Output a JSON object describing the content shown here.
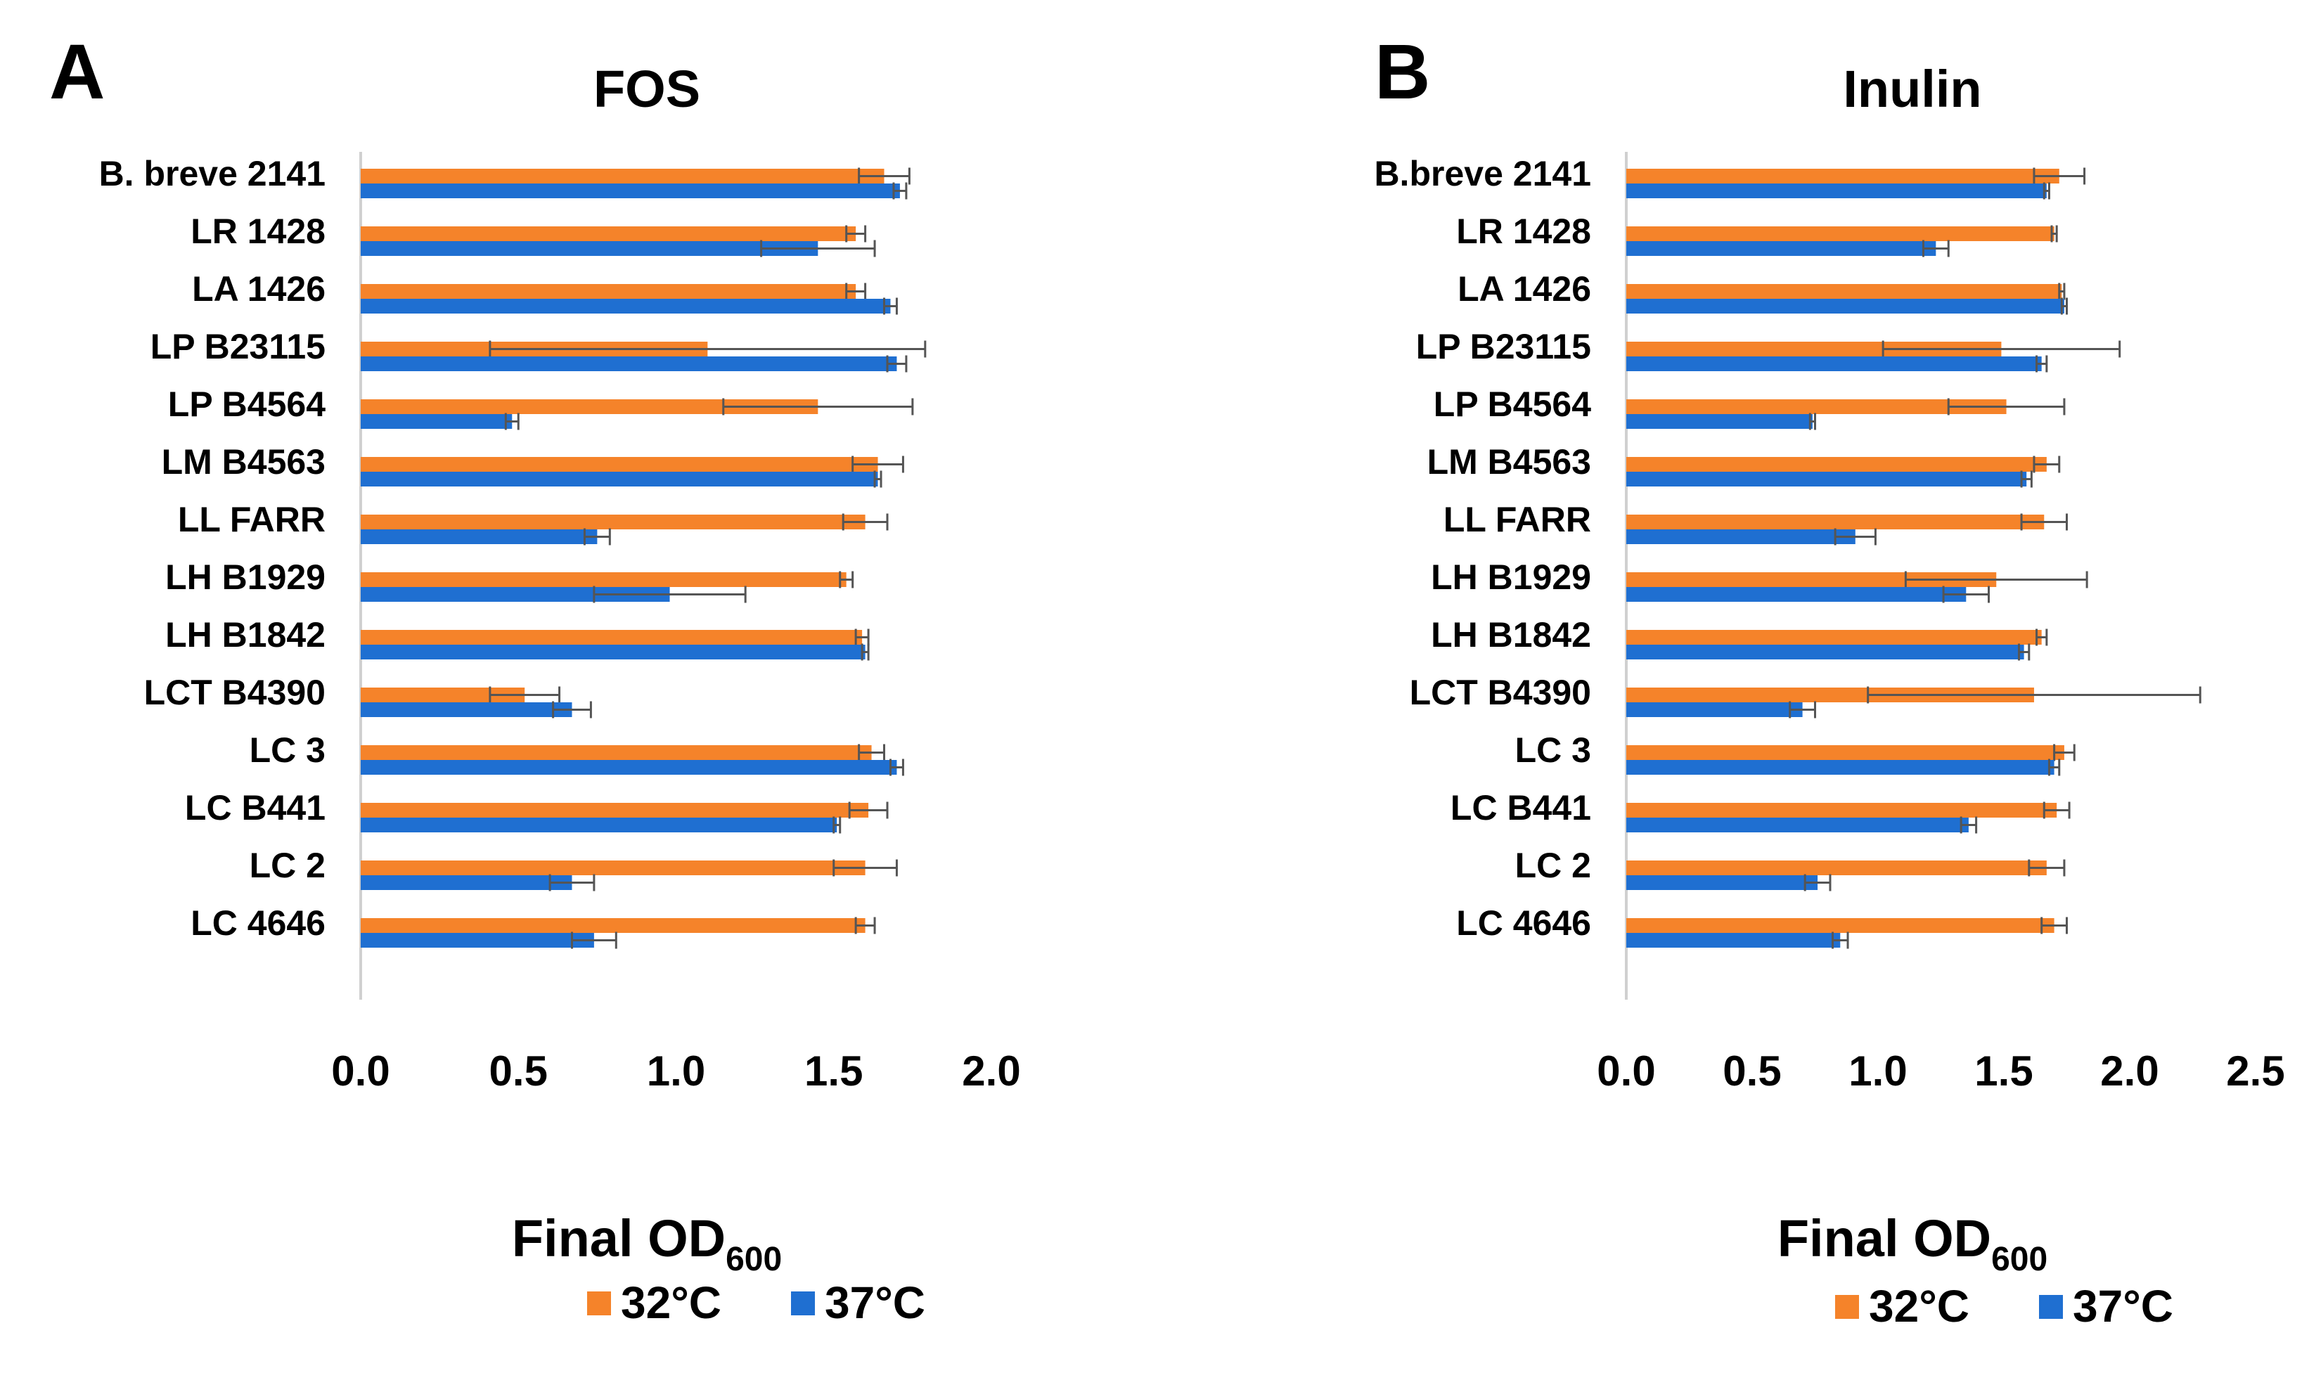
{
  "chart_data": [
    {
      "type": "bar",
      "orientation": "horizontal",
      "panel_label": "A",
      "title": "FOS",
      "xlabel": "Final OD",
      "xlabel_sub": "600",
      "xlim": [
        0,
        2
      ],
      "xticks": [
        "0.0",
        "0.5",
        "1.0",
        "1.5",
        "2.0"
      ],
      "categories": [
        "B. breve 2141",
        "LR 1428",
        "LA 1426",
        "LP B23115",
        "LP B4564",
        "LM B4563",
        "LL FARR",
        "LH B1929",
        "LH B1842",
        "LCT B4390",
        "LC 3",
        "LC B441",
        "LC 2",
        "LC 4646"
      ],
      "series": [
        {
          "name": "32°C",
          "color": "#F5832A",
          "values": [
            1.66,
            1.57,
            1.57,
            1.1,
            1.45,
            1.64,
            1.6,
            1.54,
            1.59,
            0.52,
            1.62,
            1.61,
            1.6,
            1.6
          ],
          "errors": [
            0.08,
            0.03,
            0.03,
            0.69,
            0.3,
            0.08,
            0.07,
            0.02,
            0.02,
            0.11,
            0.04,
            0.06,
            0.1,
            0.03
          ]
        },
        {
          "name": "37°C",
          "color": "#1F6FD1",
          "values": [
            1.71,
            1.45,
            1.68,
            1.7,
            0.48,
            1.64,
            0.75,
            0.98,
            1.6,
            0.67,
            1.7,
            1.51,
            0.67,
            0.74
          ],
          "errors": [
            0.02,
            0.18,
            0.02,
            0.03,
            0.02,
            0.01,
            0.04,
            0.24,
            0.01,
            0.06,
            0.02,
            0.01,
            0.07,
            0.07
          ]
        }
      ],
      "legend": "bottom"
    },
    {
      "type": "bar",
      "orientation": "horizontal",
      "panel_label": "B",
      "title": "Inulin",
      "xlabel": "Final OD",
      "xlabel_sub": "600",
      "xlim": [
        0,
        2.5
      ],
      "xticks": [
        "0.0",
        "0.5",
        "1.0",
        "1.5",
        "2.0",
        "2.5"
      ],
      "categories": [
        "B.breve 2141",
        "LR 1428",
        "LA 1426",
        "LP B23115",
        "LP B4564",
        "LM B4563",
        "LL FARR",
        "LH B1929",
        "LH B1842",
        "LCT B4390",
        "LC 3",
        "LC B441",
        "LC 2",
        "LC 4646"
      ],
      "series": [
        {
          "name": "32°C",
          "color": "#F5832A",
          "values": [
            1.72,
            1.7,
            1.73,
            1.49,
            1.51,
            1.67,
            1.66,
            1.47,
            1.65,
            1.62,
            1.74,
            1.71,
            1.67,
            1.7
          ],
          "errors": [
            0.1,
            0.01,
            0.01,
            0.47,
            0.23,
            0.05,
            0.09,
            0.36,
            0.02,
            0.66,
            0.04,
            0.05,
            0.07,
            0.05
          ]
        },
        {
          "name": "37°C",
          "color": "#1F6FD1",
          "values": [
            1.67,
            1.23,
            1.74,
            1.65,
            0.74,
            1.59,
            0.91,
            1.35,
            1.58,
            0.7,
            1.7,
            1.36,
            0.76,
            0.85
          ],
          "errors": [
            0.01,
            0.05,
            0.01,
            0.02,
            0.01,
            0.02,
            0.08,
            0.09,
            0.02,
            0.05,
            0.02,
            0.03,
            0.05,
            0.03
          ]
        }
      ],
      "legend": "bottom"
    }
  ]
}
